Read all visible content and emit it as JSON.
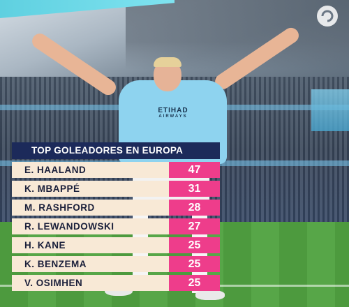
{
  "panel": {
    "title": "TOP GOLEADORES EN EUROPA",
    "rows": [
      {
        "name": "E. HAALAND",
        "goals": "47"
      },
      {
        "name": "K. MBAPPÉ",
        "goals": "31"
      },
      {
        "name": "M. RASHFORD",
        "goals": "28"
      },
      {
        "name": "R. LEWANDOWSKI",
        "goals": "27"
      },
      {
        "name": "H. KANE",
        "goals": "25"
      },
      {
        "name": "K. BENZEMA",
        "goals": "25"
      },
      {
        "name": "V. OSIMHEN",
        "goals": "25"
      }
    ]
  },
  "photo": {
    "jersey_sponsor": "ETIHAD",
    "jersey_sponsor_sub": "AIRWAYS"
  },
  "colors": {
    "title_bg": "#1c2a5a",
    "name_bg": "#f8e9d6",
    "goals_bg": "#ee3d8b",
    "jersey": "#8ed3ef"
  }
}
